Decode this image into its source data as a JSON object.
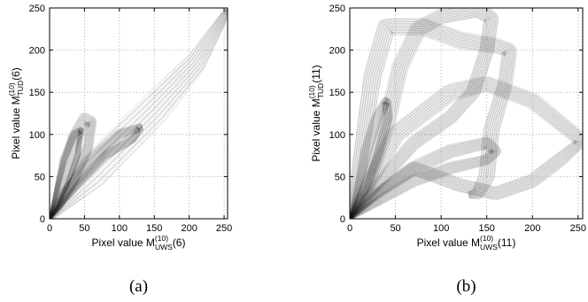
{
  "chart_data": [
    {
      "type": "scatter",
      "panel_label": "(a)",
      "xlabel": {
        "base": "Pixel value M",
        "sup": "(10)",
        "sub": "UWS",
        "suffix": "(6)"
      },
      "ylabel": {
        "base": "Pixel value M",
        "sup": "(10)",
        "sub": "TUD",
        "suffix": "(6)"
      },
      "xlim": [
        0,
        255
      ],
      "ylim": [
        0,
        250
      ],
      "xticks": [
        0,
        50,
        100,
        150,
        200,
        250
      ],
      "yticks": [
        0,
        50,
        100,
        150,
        200,
        250
      ],
      "grid": true,
      "point_color": "#2f2f2f",
      "bands": [
        {
          "anchors": [
            [
              0,
              0
            ],
            [
              60,
              55
            ],
            [
              150,
              130
            ],
            [
              210,
              185
            ],
            [
              250,
              240
            ],
            [
              255,
              248
            ]
          ],
          "width": [
            3,
            22,
            20,
            14,
            6,
            2
          ]
        },
        {
          "anchors": [
            [
              0,
              0
            ],
            [
              15,
              40
            ],
            [
              35,
              95
            ],
            [
              50,
              118
            ],
            [
              60,
              115
            ],
            [
              55,
              85
            ],
            [
              35,
              45
            ],
            [
              15,
              15
            ],
            [
              0,
              0
            ]
          ],
          "width": [
            2,
            7,
            9,
            8,
            7,
            7,
            6,
            4,
            2
          ]
        },
        {
          "anchors": [
            [
              0,
              0
            ],
            [
              20,
              30
            ],
            [
              60,
              70
            ],
            [
              100,
              100
            ],
            [
              130,
              108
            ],
            [
              120,
              95
            ],
            [
              80,
              75
            ],
            [
              40,
              40
            ],
            [
              0,
              0
            ]
          ],
          "width": [
            2,
            6,
            7,
            6,
            5,
            5,
            5,
            4,
            2
          ]
        },
        {
          "anchors": [
            [
              0,
              0
            ],
            [
              8,
              25
            ],
            [
              20,
              70
            ],
            [
              35,
              100
            ],
            [
              45,
              105
            ],
            [
              40,
              75
            ],
            [
              25,
              40
            ],
            [
              10,
              12
            ],
            [
              0,
              0
            ]
          ],
          "width": [
            1,
            3,
            5,
            5,
            4,
            4,
            3,
            2,
            1
          ]
        }
      ]
    },
    {
      "type": "scatter",
      "panel_label": "(b)",
      "xlabel": {
        "base": "Pixel value M",
        "sup": "(10)",
        "sub": "UWS",
        "suffix": "(11)"
      },
      "ylabel": {
        "base": "Pixel value M",
        "sup": "(10)",
        "sub": "TUD",
        "suffix": "(11)"
      },
      "xlim": [
        0,
        255
      ],
      "ylim": [
        0,
        250
      ],
      "xticks": [
        0,
        50,
        100,
        150,
        200,
        250
      ],
      "yticks": [
        0,
        50,
        100,
        150,
        200,
        250
      ],
      "grid": true,
      "point_color": "#2f2f2f",
      "bands": [
        {
          "anchors": [
            [
              0,
              0
            ],
            [
              10,
              60
            ],
            [
              25,
              170
            ],
            [
              40,
              228
            ],
            [
              80,
              228
            ],
            [
              120,
              212
            ],
            [
              160,
              205
            ],
            [
              175,
              200
            ],
            [
              170,
              160
            ],
            [
              155,
              105
            ],
            [
              150,
              50
            ],
            [
              140,
              30
            ],
            [
              130,
              28
            ]
          ],
          "width": [
            2,
            8,
            10,
            10,
            10,
            10,
            9,
            8,
            8,
            9,
            9,
            7,
            4
          ]
        },
        {
          "anchors": [
            [
              0,
              0
            ],
            [
              20,
              40
            ],
            [
              50,
              100
            ],
            [
              110,
              150
            ],
            [
              150,
              160
            ],
            [
              200,
              140
            ],
            [
              248,
              98
            ],
            [
              252,
              90
            ],
            [
              230,
              70
            ],
            [
              200,
              45
            ],
            [
              160,
              30
            ],
            [
              120,
              40
            ],
            [
              70,
              60
            ],
            [
              30,
              30
            ],
            [
              0,
              0
            ]
          ],
          "width": [
            2,
            8,
            10,
            10,
            9,
            9,
            8,
            6,
            8,
            8,
            8,
            8,
            8,
            5,
            2
          ]
        },
        {
          "anchors": [
            [
              0,
              0
            ],
            [
              20,
              40
            ],
            [
              40,
              110
            ],
            [
              55,
              180
            ],
            [
              75,
              225
            ],
            [
              100,
              240
            ],
            [
              140,
              248
            ],
            [
              155,
              238
            ],
            [
              150,
              200
            ],
            [
              135,
              150
            ],
            [
              110,
              120
            ],
            [
              70,
              90
            ],
            [
              30,
              40
            ],
            [
              0,
              0
            ]
          ],
          "width": [
            2,
            7,
            9,
            9,
            9,
            9,
            9,
            8,
            8,
            8,
            8,
            8,
            6,
            2
          ]
        },
        {
          "anchors": [
            [
              0,
              0
            ],
            [
              30,
              30
            ],
            [
              70,
              60
            ],
            [
              110,
              80
            ],
            [
              150,
              90
            ],
            [
              160,
              80
            ],
            [
              150,
              70
            ],
            [
              110,
              60
            ],
            [
              70,
              45
            ],
            [
              30,
              20
            ],
            [
              0,
              0
            ]
          ],
          "width": [
            2,
            6,
            8,
            8,
            7,
            6,
            6,
            7,
            7,
            5,
            2
          ]
        },
        {
          "anchors": [
            [
              0,
              0
            ],
            [
              8,
              30
            ],
            [
              18,
              80
            ],
            [
              30,
              120
            ],
            [
              40,
              140
            ],
            [
              42,
              120
            ],
            [
              32,
              80
            ],
            [
              18,
              35
            ],
            [
              5,
              10
            ],
            [
              0,
              0
            ]
          ],
          "width": [
            1,
            4,
            6,
            6,
            5,
            5,
            5,
            4,
            2,
            1
          ]
        }
      ]
    }
  ]
}
